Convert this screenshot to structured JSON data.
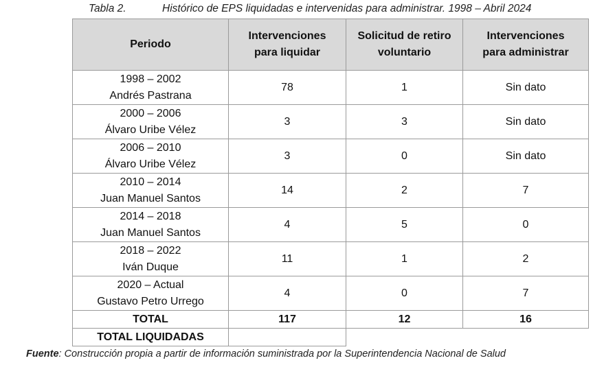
{
  "caption": {
    "number": "Tabla 2.",
    "title": "Histórico de EPS liquidadas e intervenidas para administrar. 1998 – Abril 2024"
  },
  "table": {
    "headers": [
      "Periodo",
      "Intervenciones para liquidar",
      "Solicitud de retiro voluntario",
      "Intervenciones para administrar"
    ],
    "header_lines": [
      [
        "Periodo"
      ],
      [
        "Intervenciones",
        "para liquidar"
      ],
      [
        "Solicitud de retiro",
        "voluntario"
      ],
      [
        "Intervenciones",
        "para administrar"
      ]
    ],
    "rows": [
      {
        "period": "1998 – 2002",
        "president": "Andrés Pastrana",
        "liquidar": "78",
        "retiro": "1",
        "administrar": "Sin dato"
      },
      {
        "period": "2000 – 2006",
        "president": "Álvaro Uribe Vélez",
        "liquidar": "3",
        "retiro": "3",
        "administrar": "Sin dato"
      },
      {
        "period": "2006 – 2010",
        "president": "Álvaro Uribe Vélez",
        "liquidar": "3",
        "retiro": "0",
        "administrar": "Sin dato"
      },
      {
        "period": "2010 – 2014",
        "president": "Juan Manuel Santos",
        "liquidar": "14",
        "retiro": "2",
        "administrar": "7"
      },
      {
        "period": "2014 – 2018",
        "president": "Juan Manuel Santos",
        "liquidar": "4",
        "retiro": "5",
        "administrar": "0"
      },
      {
        "period": "2018 – 2022",
        "president": "Iván Duque",
        "liquidar": "11",
        "retiro": "1",
        "administrar": "2"
      },
      {
        "period": "2020 – Actual",
        "president": "Gustavo Petro Urrego",
        "liquidar": "4",
        "retiro": "0",
        "administrar": "7"
      }
    ],
    "total": {
      "label": "TOTAL",
      "liquidar": "117",
      "retiro": "12",
      "administrar": "16"
    },
    "total_liquidadas": {
      "label": "TOTAL LIQUIDADAS",
      "value": ""
    }
  },
  "source": {
    "label": "Fuente",
    "text": ": Construcción propia a partir de información suministrada por la Superintendencia Nacional de Salud"
  }
}
